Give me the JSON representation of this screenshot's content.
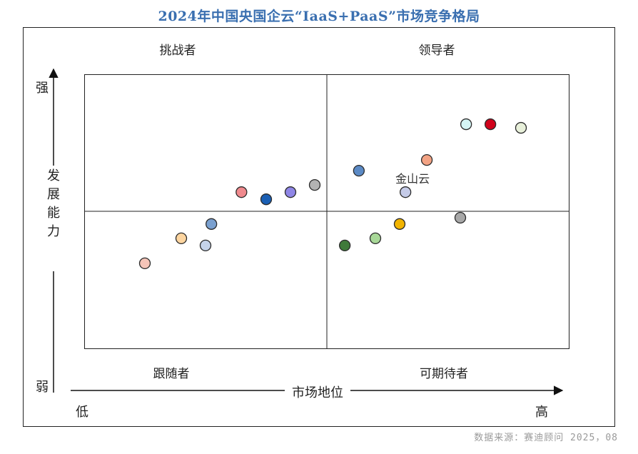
{
  "chart_data": {
    "type": "scatter",
    "title": "2024年中国央国企云“IaaS+PaaS”市场竞争格局",
    "xlabel": "市场地位",
    "ylabel": "发展能力",
    "xlim": [
      0,
      100
    ],
    "ylim": [
      0,
      100
    ],
    "x_low_label": "低",
    "x_high_label": "高",
    "y_high_label": "强",
    "y_low_label": "弱",
    "quadrants": {
      "top_left": "挑战者",
      "top_right": "领导者",
      "bottom_left": "跟随者",
      "bottom_right": "可期待者"
    },
    "points": [
      {
        "x": 12.5,
        "y": 31.2,
        "color": "#f5c4b8",
        "label": ""
      },
      {
        "x": 20.0,
        "y": 40.3,
        "color": "#fdd5a0",
        "label": ""
      },
      {
        "x": 25.0,
        "y": 37.7,
        "color": "#c5d3ea",
        "label": ""
      },
      {
        "x": 26.2,
        "y": 45.5,
        "color": "#7aa0cf",
        "label": ""
      },
      {
        "x": 32.4,
        "y": 57.1,
        "color": "#f08a8e",
        "label": ""
      },
      {
        "x": 37.5,
        "y": 54.5,
        "color": "#1a5fb4",
        "label": ""
      },
      {
        "x": 42.5,
        "y": 57.1,
        "color": "#8f86e6",
        "label": ""
      },
      {
        "x": 47.5,
        "y": 59.7,
        "color": "#b3b3b3",
        "label": ""
      },
      {
        "x": 53.7,
        "y": 37.7,
        "color": "#3f7a3a",
        "label": ""
      },
      {
        "x": 56.6,
        "y": 64.9,
        "color": "#5b8ac5",
        "label": ""
      },
      {
        "x": 60.0,
        "y": 40.3,
        "color": "#a8d898",
        "label": ""
      },
      {
        "x": 65.0,
        "y": 45.5,
        "color": "#f2b400",
        "label": ""
      },
      {
        "x": 66.2,
        "y": 57.1,
        "color": "#c5cbe8",
        "label": "金山云"
      },
      {
        "x": 70.6,
        "y": 68.8,
        "color": "#f3a384",
        "label": ""
      },
      {
        "x": 77.5,
        "y": 47.8,
        "color": "#a8a8a8",
        "label": ""
      },
      {
        "x": 78.7,
        "y": 81.8,
        "color": "#d5f5f5",
        "label": ""
      },
      {
        "x": 83.7,
        "y": 81.8,
        "color": "#d0021b",
        "label": ""
      },
      {
        "x": 90.0,
        "y": 80.5,
        "color": "#e8f0da",
        "label": ""
      }
    ]
  },
  "source": "数据来源：赛迪顾问  2025，08"
}
